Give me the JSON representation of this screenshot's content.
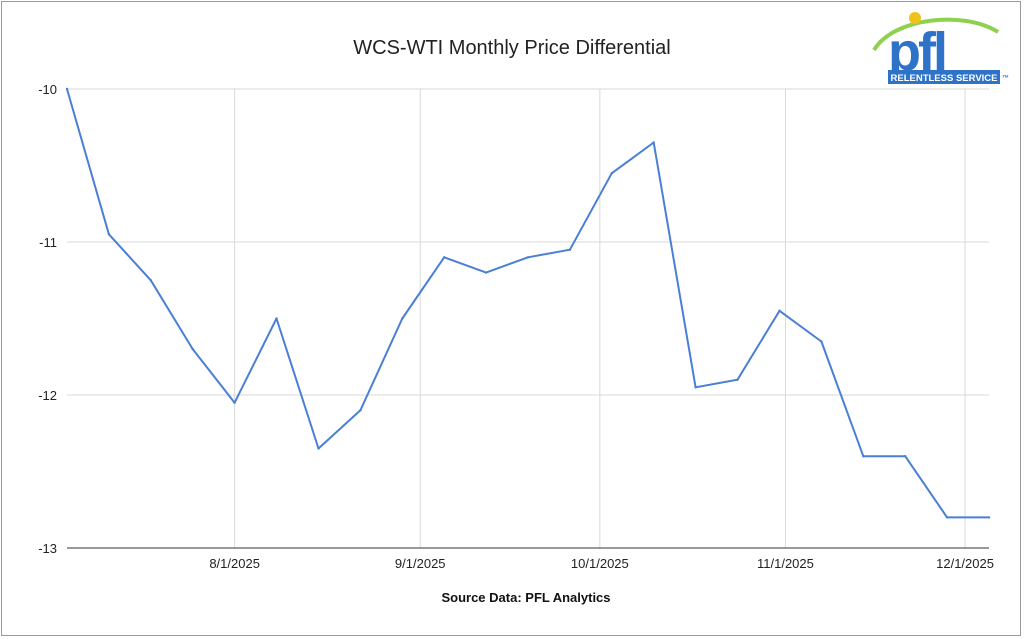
{
  "chart_data": {
    "type": "line",
    "title": "WCS-WTI Monthly Price Differential",
    "source": "Source Data: PFL Analytics",
    "x": [
      "7/4/2025",
      "7/11/2025",
      "7/18/2025",
      "7/25/2025",
      "8/1/2025",
      "8/8/2025",
      "8/15/2025",
      "8/22/2025",
      "8/29/2025",
      "9/5/2025",
      "9/12/2025",
      "9/19/2025",
      "9/26/2025",
      "10/3/2025",
      "10/10/2025",
      "10/17/2025",
      "10/24/2025",
      "10/31/2025",
      "11/7/2025",
      "11/14/2025",
      "11/21/2025",
      "11/28/2025",
      "12/5/2025"
    ],
    "series": [
      {
        "values": [
          -10.0,
          -10.95,
          -11.25,
          -11.7,
          -12.05,
          -11.5,
          -12.35,
          -12.1,
          -11.5,
          -11.1,
          -11.2,
          -11.1,
          -11.05,
          -10.55,
          -10.35,
          -11.95,
          -11.9,
          -11.45,
          -11.65,
          -12.4,
          -12.4,
          -12.8,
          -12.8
        ]
      }
    ],
    "x_tick_labels": [
      "8/1/2025",
      "9/1/2025",
      "10/1/2025",
      "11/1/2025",
      "12/1/2025"
    ],
    "y_tick_labels": [
      "-10",
      "-11",
      "-12",
      "-13"
    ],
    "ylim": [
      -13,
      -10
    ],
    "grid": true,
    "line_color": "#4a7fd6"
  },
  "logo": {
    "letters": "pfl",
    "tagline": "RELENTLESS SERVICE",
    "tm": "™"
  }
}
